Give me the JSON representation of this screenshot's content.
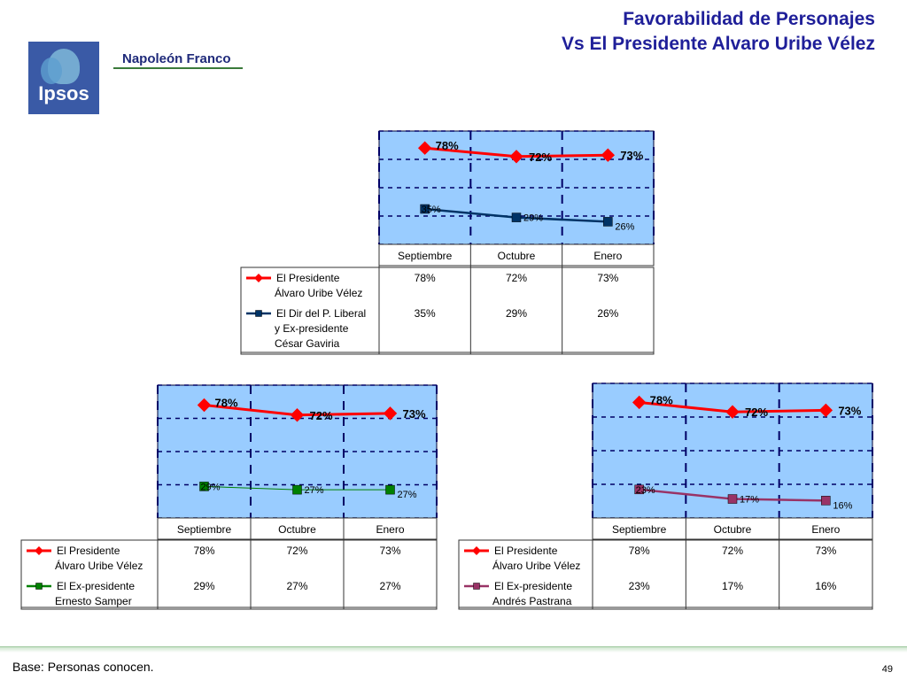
{
  "header": {
    "title_line1": "Favorabilidad de Personajes",
    "title_line2": "Vs El Presidente Alvaro Uribe Vélez",
    "logo_text": "Ipsos",
    "partner": "Napoleón Franco"
  },
  "footer": {
    "base": "Base: Personas conocen.",
    "page": "49"
  },
  "colors": {
    "plot_bg": "#99ccff",
    "president": "#ff0000",
    "gaviria": "#003366",
    "samper": "#008000",
    "pastrana": "#993366"
  },
  "chart_data": [
    {
      "type": "line",
      "categories": [
        "Septiembre",
        "Octubre",
        "Enero"
      ],
      "series": [
        {
          "name": "El Presidente Álvaro Uribe Vélez",
          "name_lines": [
            "El Presidente",
            "Álvaro Uribe Vélez"
          ],
          "values": [
            78,
            72,
            73
          ],
          "labels": [
            "78%",
            "72%",
            "73%"
          ],
          "table": [
            "78%",
            "72%",
            "73%"
          ],
          "color": "#ff0000",
          "marker": "diamond"
        },
        {
          "name": "El Dir del P. Liberal y Ex-presidente César Gaviria",
          "name_lines": [
            "El Dir del P. Liberal",
            "y Ex-presidente",
            "César Gaviria"
          ],
          "values": [
            35,
            29,
            26
          ],
          "labels": [
            "35%",
            "29%",
            "26%"
          ],
          "table": [
            "35%",
            "29%",
            "26%"
          ],
          "color": "#003366",
          "marker": "square"
        }
      ],
      "grid": true,
      "legend": "data-table"
    },
    {
      "type": "line",
      "categories": [
        "Septiembre",
        "Octubre",
        "Enero"
      ],
      "series": [
        {
          "name": "El Presidente Álvaro Uribe Vélez",
          "name_lines": [
            "El Presidente",
            "Álvaro Uribe Vélez"
          ],
          "values": [
            78,
            72,
            73
          ],
          "labels": [
            "78%",
            "72%",
            "73%"
          ],
          "table": [
            "78%",
            "72%",
            "73%"
          ],
          "color": "#ff0000",
          "marker": "diamond"
        },
        {
          "name": "El Ex-presidente Ernesto Samper",
          "name_lines": [
            "El Ex-presidente",
            "Ernesto Samper"
          ],
          "values": [
            29,
            27,
            27
          ],
          "labels": [
            "29%",
            "27%",
            "27%"
          ],
          "table": [
            "29%",
            "27%",
            "27%"
          ],
          "color": "#008000",
          "marker": "square"
        }
      ],
      "grid": true,
      "legend": "data-table"
    },
    {
      "type": "line",
      "categories": [
        "Septiembre",
        "Octubre",
        "Enero"
      ],
      "series": [
        {
          "name": "El Presidente Álvaro Uribe Vélez",
          "name_lines": [
            "El Presidente",
            "Álvaro Uribe Vélez"
          ],
          "values": [
            78,
            72,
            73
          ],
          "labels": [
            "78%",
            "72%",
            "73%"
          ],
          "table": [
            "78%",
            "72%",
            "73%"
          ],
          "color": "#ff0000",
          "marker": "diamond"
        },
        {
          "name": "El Ex-presidente Andrés Pastrana",
          "name_lines": [
            "El Ex-presidente",
            "Andrés Pastrana"
          ],
          "values": [
            23,
            17,
            16
          ],
          "labels": [
            "23%",
            "17%",
            "16%"
          ],
          "table": [
            "23%",
            "17%",
            "16%"
          ],
          "color": "#993366",
          "marker": "square"
        }
      ],
      "grid": true,
      "legend": "data-table"
    }
  ]
}
